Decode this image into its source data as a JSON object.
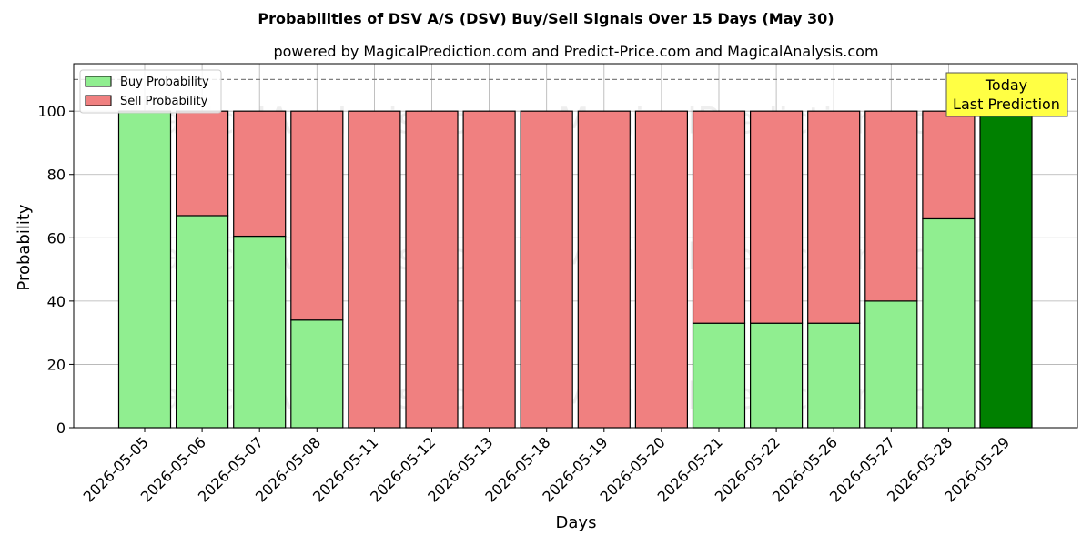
{
  "chart_data": {
    "type": "bar",
    "stacked": true,
    "title": "Probabilities of DSV A/S (DSV) Buy/Sell Signals Over 15 Days (May 30)",
    "subtitle": "powered by MagicalPrediction.com and Predict-Price.com and MagicalAnalysis.com",
    "xlabel": "Days",
    "ylabel": "Probability",
    "ylim": [
      0,
      115
    ],
    "yticks": [
      0,
      20,
      40,
      60,
      80,
      100
    ],
    "grid": true,
    "legend_placement": "top-left",
    "categories": [
      "2026-05-05",
      "2026-05-06",
      "2026-05-07",
      "2026-05-08",
      "2026-05-11",
      "2026-05-12",
      "2026-05-13",
      "2026-05-18",
      "2026-05-19",
      "2026-05-20",
      "2026-05-21",
      "2026-05-22",
      "2026-05-26",
      "2026-05-27",
      "2026-05-28",
      "2026-05-29"
    ],
    "series": [
      {
        "name": "Buy Probability",
        "color": "#90ee90",
        "values": [
          100,
          67,
          60.5,
          34,
          0,
          0,
          0,
          0,
          0,
          0,
          33,
          33,
          33,
          40,
          66,
          100
        ]
      },
      {
        "name": "Sell Probability",
        "color": "#f08080",
        "values": [
          0,
          33,
          39.5,
          66,
          100,
          100,
          100,
          100,
          100,
          100,
          67,
          67,
          67,
          60,
          34,
          0
        ]
      }
    ],
    "highlight": {
      "index": 15,
      "color": "#008000"
    },
    "reference_line": {
      "y": 110,
      "style": "dashed",
      "color": "#808080"
    },
    "annotation": {
      "lines": [
        "Today",
        "Last Prediction"
      ],
      "background": "#ffff44"
    },
    "watermarks": [
      "MagicalAnalysis.com",
      "MagicalPrediction.com"
    ]
  }
}
